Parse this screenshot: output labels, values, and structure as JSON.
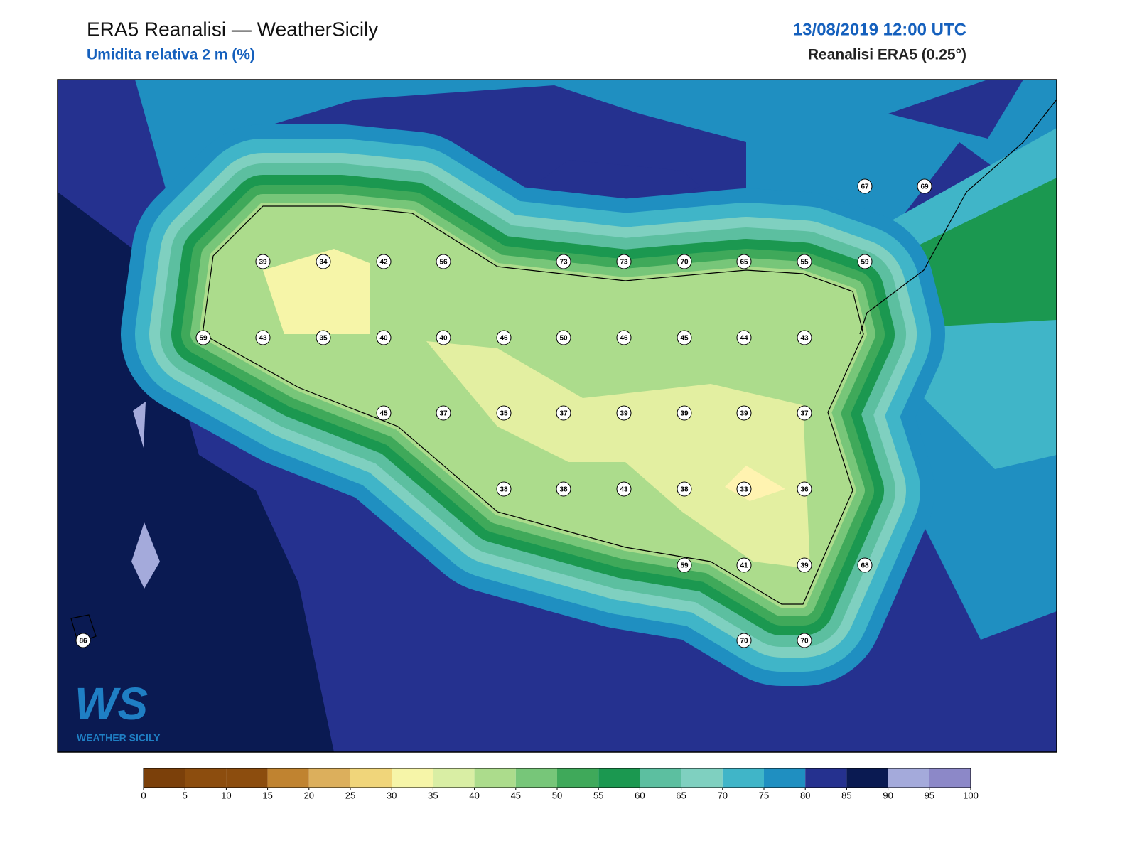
{
  "header": {
    "title": "ERA5 Reanalisi — WeatherSicily",
    "subtitle": "Umidita relativa 2 m (%)",
    "datetime": "13/08/2019 12:00 UTC",
    "source": "Reanalisi ERA5 (0.25°)"
  },
  "stations": {
    "values": [
      39,
      34,
      42,
      56,
      73,
      73,
      70,
      65,
      55,
      59,
      67,
      69,
      59,
      43,
      35,
      40,
      40,
      46,
      50,
      46,
      45,
      44,
      43,
      45,
      37,
      35,
      37,
      39,
      39,
      39,
      37,
      38,
      38,
      43,
      38,
      33,
      36,
      59,
      41,
      39,
      68,
      86,
      70,
      70
    ]
  },
  "colorbar": {
    "ticks": [
      0,
      5,
      10,
      15,
      20,
      25,
      30,
      35,
      40,
      45,
      50,
      55,
      60,
      65,
      70,
      75,
      80,
      85,
      90,
      95,
      100
    ],
    "colors": [
      "#7b400a",
      "#8c4d0e",
      "#8c4d0e",
      "#c08330",
      "#dcaf5c",
      "#f0d57a",
      "#f6f5a8",
      "#d9eea4",
      "#acdc8c",
      "#77c679",
      "#3fa95a",
      "#1b9850",
      "#5cbfa0",
      "#7fd0c0",
      "#40b5c8",
      "#1f8fc1",
      "#25318f",
      "#0a1a52",
      "#a4aadb",
      "#8c88c8"
    ]
  },
  "logo": {
    "text": "WS",
    "caption": "WEATHER SICILY"
  }
}
